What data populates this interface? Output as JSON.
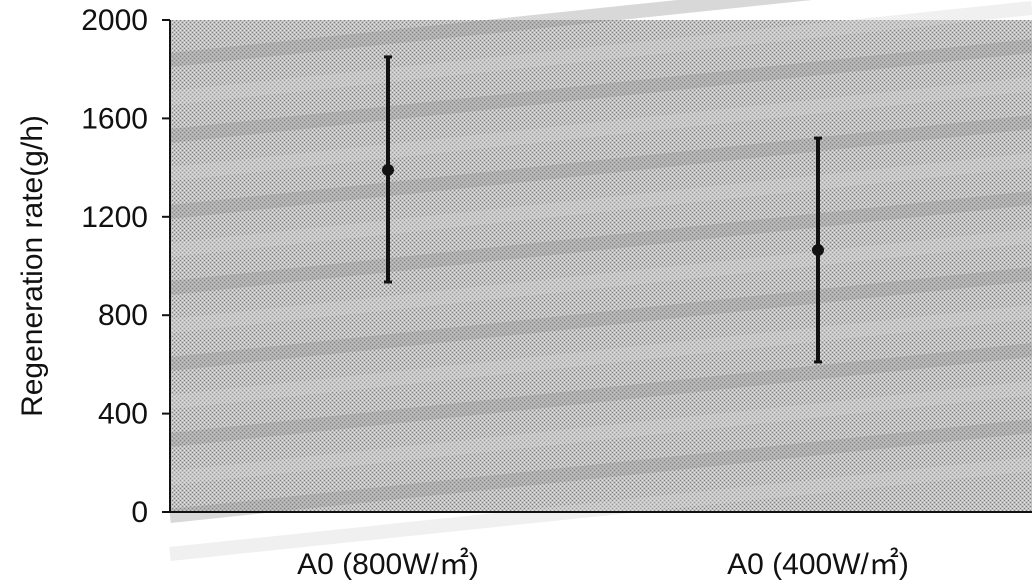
{
  "chart_data": {
    "type": "scatter",
    "categories": [
      "A0 (800W/㎡)",
      "A0 (400W/㎡)"
    ],
    "points": [
      {
        "category": "A0 (800W/㎡)",
        "mean": 1390,
        "min": 935,
        "max": 1850
      },
      {
        "category": "A0 (400W/㎡)",
        "mean": 1065,
        "min": 610,
        "max": 1520
      }
    ],
    "title": "",
    "xlabel": "",
    "ylabel": "Regeneration rate(g/h)",
    "ylim": [
      0,
      2000
    ],
    "yticks": [
      0,
      400,
      800,
      1200,
      1600,
      2000
    ],
    "yticks_labels": [
      "0",
      "400",
      "800",
      "1200",
      "1600",
      "2000"
    ],
    "grid": false,
    "colors": {
      "plot_background": "#b8b8b8",
      "texture_dark": "#8e8e8e",
      "texture_light": "#d4d4d4",
      "marker": "#111111",
      "axis": "#111111"
    }
  }
}
